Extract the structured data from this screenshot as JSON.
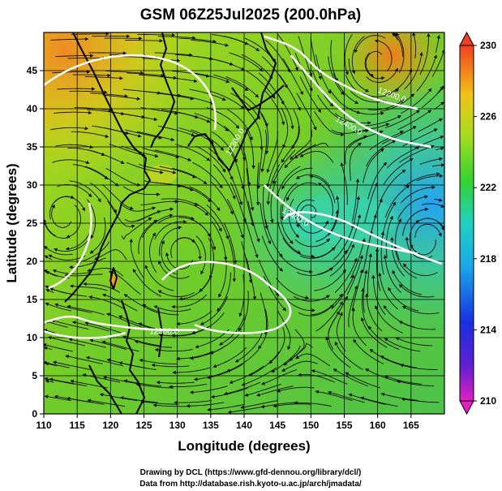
{
  "title": "GSM 06Z25Jul2025 (200.0hPa)",
  "xlabel": "Longitude (degrees)",
  "ylabel": "Latitude  (degrees)",
  "x_ticks": [
    "110",
    "115",
    "120",
    "125",
    "130",
    "135",
    "140",
    "145",
    "150",
    "155",
    "160",
    "165"
  ],
  "y_ticks": [
    "0",
    "5",
    "10",
    "15",
    "20",
    "25",
    "30",
    "35",
    "40",
    "45"
  ],
  "colorbar_ticks": [
    "230",
    "226",
    "222",
    "218",
    "214",
    "210"
  ],
  "contour_labels": [
    "12400.0",
    "12200.0",
    "12400.0",
    "12300.0",
    "12300.0"
  ],
  "credits": {
    "line1": "Drawing by DCL (https://www.gfd-dennou.org/library/dcl/)",
    "line2": "Data from http://database.rish.kyoto-u.ac.jp/arch/jmadata/"
  },
  "chart_data": {
    "type": "heatmap",
    "title": "GSM 06Z25Jul2025 (200.0hPa)",
    "xlabel": "Longitude (degrees)",
    "ylabel": "Latitude  (degrees)",
    "xlim": [
      110,
      170
    ],
    "ylim": [
      0,
      50
    ],
    "grid": true,
    "colorbar_range": [
      210,
      230
    ],
    "colorbar_ticks": [
      230,
      226,
      222,
      218,
      214,
      210
    ],
    "overlays": [
      "streamlines",
      "height-contours",
      "coastlines"
    ],
    "contours": [
      {
        "label": "12400.0",
        "points": [
          [
            147,
            47
          ],
          [
            150,
            44
          ],
          [
            153,
            41
          ],
          [
            157,
            38
          ],
          [
            162,
            36
          ],
          [
            168,
            35
          ]
        ]
      },
      {
        "label": "12200.0",
        "points": [
          [
            143,
            49.5
          ],
          [
            148,
            48
          ],
          [
            151,
            45
          ],
          [
            155,
            43
          ],
          [
            160,
            41
          ],
          [
            166,
            40
          ]
        ]
      },
      {
        "label": "12300.0",
        "points": [
          [
            143,
            30
          ],
          [
            146,
            27.5
          ],
          [
            150,
            25
          ],
          [
            155,
            23
          ],
          [
            160,
            22
          ],
          [
            166,
            21
          ]
        ]
      },
      {
        "label": "12300.0",
        "points": [
          [
            110,
            12
          ],
          [
            114,
            13
          ],
          [
            117,
            12
          ],
          [
            121,
            11.5
          ],
          [
            126,
            11
          ],
          [
            133,
            11
          ]
        ]
      }
    ],
    "centers": [
      {
        "type": "anticyclone",
        "x": 113,
        "y": 26
      },
      {
        "type": "anticyclone",
        "x": 131,
        "y": 21
      },
      {
        "type": "anticyclone",
        "x": 167,
        "y": 23
      },
      {
        "type": "cyclone",
        "x": 160,
        "y": 46
      },
      {
        "type": "cyclone",
        "x": 150,
        "y": 26
      }
    ]
  }
}
